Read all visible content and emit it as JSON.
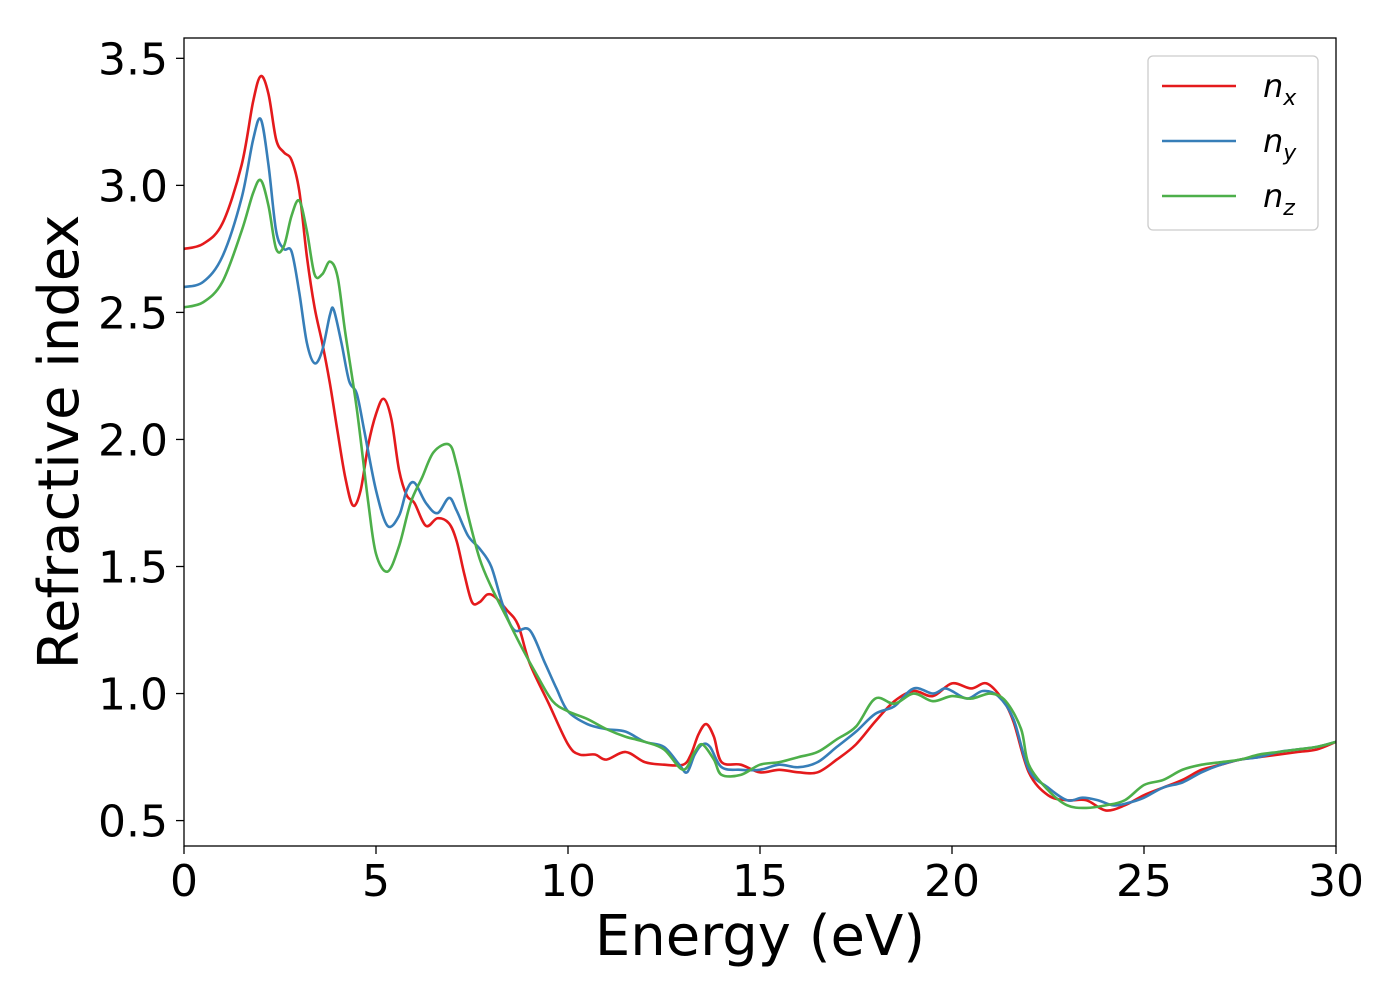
{
  "chart_data": {
    "type": "line",
    "xlabel": "Energy (eV)",
    "ylabel": "Refractive index",
    "xlim": [
      0,
      30
    ],
    "ylim": [
      0.4,
      3.58
    ],
    "xticks": [
      0,
      5,
      10,
      15,
      20,
      25,
      30
    ],
    "xtick_labels": [
      "0",
      "5",
      "10",
      "15",
      "20",
      "25",
      "30"
    ],
    "yticks": [
      0.5,
      1.0,
      1.5,
      2.0,
      2.5,
      3.0,
      3.5
    ],
    "ytick_labels": [
      "0.5",
      "1.0",
      "1.5",
      "2.0",
      "2.5",
      "3.0",
      "3.5"
    ],
    "grid": false,
    "legend_position": "top-right",
    "series": [
      {
        "name": "n_x",
        "label_main": "n",
        "label_sub": "x",
        "color": "#e41a1c",
        "points": [
          [
            0,
            2.75
          ],
          [
            0.5,
            2.77
          ],
          [
            1.0,
            2.85
          ],
          [
            1.5,
            3.08
          ],
          [
            1.8,
            3.33
          ],
          [
            2.0,
            3.43
          ],
          [
            2.2,
            3.36
          ],
          [
            2.4,
            3.18
          ],
          [
            2.6,
            3.13
          ],
          [
            2.8,
            3.1
          ],
          [
            3.0,
            2.98
          ],
          [
            3.2,
            2.72
          ],
          [
            3.4,
            2.52
          ],
          [
            3.6,
            2.38
          ],
          [
            3.8,
            2.22
          ],
          [
            4.0,
            2.03
          ],
          [
            4.2,
            1.85
          ],
          [
            4.4,
            1.74
          ],
          [
            4.6,
            1.8
          ],
          [
            4.8,
            1.98
          ],
          [
            5.0,
            2.1
          ],
          [
            5.2,
            2.16
          ],
          [
            5.4,
            2.08
          ],
          [
            5.6,
            1.88
          ],
          [
            5.8,
            1.78
          ],
          [
            6.0,
            1.75
          ],
          [
            6.3,
            1.66
          ],
          [
            6.6,
            1.69
          ],
          [
            6.9,
            1.67
          ],
          [
            7.1,
            1.6
          ],
          [
            7.3,
            1.47
          ],
          [
            7.5,
            1.36
          ],
          [
            7.7,
            1.36
          ],
          [
            7.9,
            1.39
          ],
          [
            8.1,
            1.38
          ],
          [
            8.4,
            1.33
          ],
          [
            8.7,
            1.27
          ],
          [
            9.0,
            1.12
          ],
          [
            9.5,
            0.96
          ],
          [
            10.0,
            0.8
          ],
          [
            10.3,
            0.76
          ],
          [
            10.7,
            0.76
          ],
          [
            11.0,
            0.74
          ],
          [
            11.5,
            0.77
          ],
          [
            12.0,
            0.73
          ],
          [
            12.5,
            0.72
          ],
          [
            13.0,
            0.72
          ],
          [
            13.2,
            0.76
          ],
          [
            13.4,
            0.84
          ],
          [
            13.6,
            0.88
          ],
          [
            13.8,
            0.83
          ],
          [
            14.0,
            0.73
          ],
          [
            14.5,
            0.72
          ],
          [
            15.0,
            0.69
          ],
          [
            15.5,
            0.7
          ],
          [
            16.0,
            0.69
          ],
          [
            16.5,
            0.69
          ],
          [
            17.0,
            0.74
          ],
          [
            17.5,
            0.8
          ],
          [
            18.0,
            0.89
          ],
          [
            18.5,
            0.97
          ],
          [
            19.0,
            1.01
          ],
          [
            19.5,
            0.99
          ],
          [
            20.0,
            1.04
          ],
          [
            20.5,
            1.02
          ],
          [
            20.9,
            1.04
          ],
          [
            21.3,
            0.98
          ],
          [
            21.6,
            0.89
          ],
          [
            22.0,
            0.69
          ],
          [
            22.5,
            0.6
          ],
          [
            23.0,
            0.58
          ],
          [
            23.5,
            0.58
          ],
          [
            24.0,
            0.54
          ],
          [
            24.5,
            0.56
          ],
          [
            25.0,
            0.6
          ],
          [
            25.5,
            0.63
          ],
          [
            26.0,
            0.66
          ],
          [
            26.5,
            0.7
          ],
          [
            27.0,
            0.72
          ],
          [
            27.5,
            0.74
          ],
          [
            28.0,
            0.75
          ],
          [
            28.5,
            0.76
          ],
          [
            29.0,
            0.77
          ],
          [
            29.5,
            0.78
          ],
          [
            30.0,
            0.81
          ]
        ]
      },
      {
        "name": "n_y",
        "label_main": "n",
        "label_sub": "y",
        "color": "#377eb8",
        "points": [
          [
            0,
            2.6
          ],
          [
            0.5,
            2.62
          ],
          [
            1.0,
            2.72
          ],
          [
            1.5,
            2.95
          ],
          [
            1.8,
            3.18
          ],
          [
            2.0,
            3.26
          ],
          [
            2.2,
            3.08
          ],
          [
            2.4,
            2.82
          ],
          [
            2.6,
            2.75
          ],
          [
            2.8,
            2.74
          ],
          [
            3.0,
            2.58
          ],
          [
            3.2,
            2.38
          ],
          [
            3.4,
            2.3
          ],
          [
            3.6,
            2.35
          ],
          [
            3.8,
            2.49
          ],
          [
            3.9,
            2.51
          ],
          [
            4.1,
            2.38
          ],
          [
            4.3,
            2.23
          ],
          [
            4.5,
            2.18
          ],
          [
            4.7,
            2.03
          ],
          [
            5.0,
            1.8
          ],
          [
            5.3,
            1.66
          ],
          [
            5.6,
            1.7
          ],
          [
            5.8,
            1.8
          ],
          [
            6.0,
            1.83
          ],
          [
            6.3,
            1.75
          ],
          [
            6.6,
            1.71
          ],
          [
            6.9,
            1.77
          ],
          [
            7.1,
            1.72
          ],
          [
            7.4,
            1.62
          ],
          [
            7.7,
            1.57
          ],
          [
            8.0,
            1.5
          ],
          [
            8.3,
            1.35
          ],
          [
            8.6,
            1.25
          ],
          [
            9.0,
            1.25
          ],
          [
            9.4,
            1.12
          ],
          [
            9.7,
            1.02
          ],
          [
            10.0,
            0.93
          ],
          [
            10.5,
            0.88
          ],
          [
            11.0,
            0.86
          ],
          [
            11.5,
            0.85
          ],
          [
            12.0,
            0.81
          ],
          [
            12.5,
            0.79
          ],
          [
            12.9,
            0.72
          ],
          [
            13.1,
            0.69
          ],
          [
            13.3,
            0.76
          ],
          [
            13.5,
            0.8
          ],
          [
            13.7,
            0.79
          ],
          [
            14.0,
            0.71
          ],
          [
            14.5,
            0.7
          ],
          [
            15.0,
            0.7
          ],
          [
            15.5,
            0.72
          ],
          [
            16.0,
            0.71
          ],
          [
            16.5,
            0.73
          ],
          [
            17.0,
            0.79
          ],
          [
            17.5,
            0.85
          ],
          [
            18.0,
            0.92
          ],
          [
            18.5,
            0.95
          ],
          [
            19.0,
            1.02
          ],
          [
            19.5,
            1.0
          ],
          [
            19.8,
            1.02
          ],
          [
            20.0,
            1.01
          ],
          [
            20.4,
            0.98
          ],
          [
            20.8,
            1.01
          ],
          [
            21.2,
            0.99
          ],
          [
            21.6,
            0.9
          ],
          [
            22.0,
            0.7
          ],
          [
            22.5,
            0.63
          ],
          [
            23.0,
            0.58
          ],
          [
            23.4,
            0.59
          ],
          [
            23.8,
            0.58
          ],
          [
            24.2,
            0.56
          ],
          [
            24.6,
            0.57
          ],
          [
            25.0,
            0.59
          ],
          [
            25.5,
            0.63
          ],
          [
            26.0,
            0.65
          ],
          [
            26.5,
            0.69
          ],
          [
            27.0,
            0.72
          ],
          [
            27.5,
            0.74
          ],
          [
            28.0,
            0.75
          ],
          [
            28.5,
            0.77
          ],
          [
            29.0,
            0.78
          ],
          [
            29.5,
            0.79
          ],
          [
            30.0,
            0.81
          ]
        ]
      },
      {
        "name": "n_z",
        "label_main": "n",
        "label_sub": "z",
        "color": "#4daf4a",
        "points": [
          [
            0,
            2.52
          ],
          [
            0.5,
            2.54
          ],
          [
            1.0,
            2.62
          ],
          [
            1.5,
            2.82
          ],
          [
            1.8,
            2.97
          ],
          [
            2.0,
            3.02
          ],
          [
            2.2,
            2.92
          ],
          [
            2.4,
            2.75
          ],
          [
            2.6,
            2.76
          ],
          [
            2.8,
            2.88
          ],
          [
            3.0,
            2.94
          ],
          [
            3.2,
            2.82
          ],
          [
            3.4,
            2.65
          ],
          [
            3.6,
            2.65
          ],
          [
            3.8,
            2.7
          ],
          [
            4.0,
            2.64
          ],
          [
            4.2,
            2.42
          ],
          [
            4.5,
            2.12
          ],
          [
            4.8,
            1.75
          ],
          [
            5.0,
            1.55
          ],
          [
            5.3,
            1.48
          ],
          [
            5.6,
            1.58
          ],
          [
            5.9,
            1.75
          ],
          [
            6.2,
            1.85
          ],
          [
            6.5,
            1.95
          ],
          [
            6.9,
            1.98
          ],
          [
            7.1,
            1.9
          ],
          [
            7.4,
            1.7
          ],
          [
            7.7,
            1.53
          ],
          [
            8.0,
            1.42
          ],
          [
            8.4,
            1.3
          ],
          [
            8.8,
            1.18
          ],
          [
            9.2,
            1.07
          ],
          [
            9.6,
            0.97
          ],
          [
            10.0,
            0.93
          ],
          [
            10.5,
            0.9
          ],
          [
            11.0,
            0.86
          ],
          [
            11.5,
            0.83
          ],
          [
            12.0,
            0.81
          ],
          [
            12.5,
            0.78
          ],
          [
            13.0,
            0.7
          ],
          [
            13.3,
            0.77
          ],
          [
            13.5,
            0.8
          ],
          [
            13.8,
            0.74
          ],
          [
            14.0,
            0.68
          ],
          [
            14.5,
            0.68
          ],
          [
            15.0,
            0.72
          ],
          [
            15.5,
            0.73
          ],
          [
            16.0,
            0.75
          ],
          [
            16.5,
            0.77
          ],
          [
            17.0,
            0.82
          ],
          [
            17.5,
            0.87
          ],
          [
            18.0,
            0.98
          ],
          [
            18.5,
            0.96
          ],
          [
            19.0,
            1.0
          ],
          [
            19.5,
            0.97
          ],
          [
            20.0,
            0.99
          ],
          [
            20.5,
            0.98
          ],
          [
            21.0,
            1.0
          ],
          [
            21.4,
            0.97
          ],
          [
            21.8,
            0.86
          ],
          [
            22.0,
            0.72
          ],
          [
            22.5,
            0.62
          ],
          [
            23.0,
            0.56
          ],
          [
            23.5,
            0.55
          ],
          [
            24.0,
            0.56
          ],
          [
            24.5,
            0.58
          ],
          [
            25.0,
            0.64
          ],
          [
            25.5,
            0.66
          ],
          [
            26.0,
            0.7
          ],
          [
            26.5,
            0.72
          ],
          [
            27.0,
            0.73
          ],
          [
            27.5,
            0.74
          ],
          [
            28.0,
            0.76
          ],
          [
            28.5,
            0.77
          ],
          [
            29.0,
            0.78
          ],
          [
            29.5,
            0.79
          ],
          [
            30.0,
            0.81
          ]
        ]
      }
    ]
  }
}
